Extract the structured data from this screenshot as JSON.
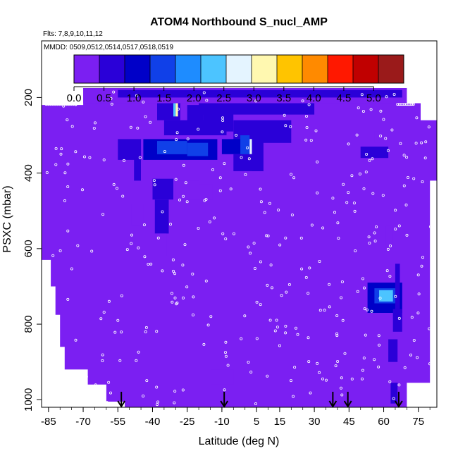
{
  "chart_data": {
    "type": "heatmap",
    "title": "ATOM4 Northbound S_nucl_AMP",
    "flights_label": "Flts: 7,8,9,10,11,12",
    "dates_label": "MMDD: 0509,0512,0514,0517,0518,0519",
    "xlabel": "Latitude (deg N)",
    "ylabel": "PSXC (mbar)",
    "xlim": [
      -88,
      83
    ],
    "ylim": [
      1020,
      50
    ],
    "x_ticks": [
      -85,
      -70,
      -55,
      -40,
      -25,
      -10,
      5,
      15,
      30,
      45,
      60,
      75
    ],
    "y_ticks": [
      200,
      400,
      600,
      800,
      1000
    ],
    "colorbar": {
      "range": [
        0.0,
        5.5
      ],
      "ticks": [
        0.0,
        0.5,
        1.0,
        1.5,
        2.0,
        2.5,
        3.0,
        3.5,
        4.0,
        4.5,
        5.0
      ],
      "colors": [
        "#7b1ff2",
        "#2a00d8",
        "#0000c8",
        "#1040e8",
        "#1e8cff",
        "#4cc4ff",
        "#e4f4ff",
        "#fff8b0",
        "#ffc400",
        "#ff8a00",
        "#ff1800",
        "#c00000",
        "#9a1a1a"
      ]
    },
    "background_value": 0.1,
    "boundary": [
      [
        -88,
        220
      ],
      [
        -88,
        630
      ],
      [
        -84,
        630
      ],
      [
        -84,
        700
      ],
      [
        -82,
        700
      ],
      [
        -82,
        775
      ],
      [
        -80,
        775
      ],
      [
        -80,
        860
      ],
      [
        -78,
        860
      ],
      [
        -78,
        920
      ],
      [
        -68,
        920
      ],
      [
        -68,
        960
      ],
      [
        -60,
        960
      ],
      [
        -60,
        1005
      ],
      [
        -52,
        1005
      ],
      [
        -52,
        1020
      ],
      [
        70,
        1020
      ],
      [
        70,
        955
      ],
      [
        80,
        955
      ],
      [
        80,
        420
      ],
      [
        83,
        420
      ],
      [
        83,
        260
      ],
      [
        76,
        260
      ],
      [
        76,
        215
      ],
      [
        70,
        215
      ],
      [
        70,
        175
      ],
      [
        -70,
        175
      ],
      [
        -70,
        220
      ]
    ],
    "features": [
      {
        "lat": [
          -70,
          68
        ],
        "p": [
          175,
          215
        ],
        "value": 0.3
      },
      {
        "lat": [
          -55,
          68
        ],
        "p": [
          180,
          200
        ],
        "value": 0.45
      },
      {
        "lat": [
          -20,
          30
        ],
        "p": [
          215,
          245
        ],
        "value": 0.5
      },
      {
        "lat": [
          -38,
          -28
        ],
        "p": [
          215,
          260
        ],
        "value": 0.6
      },
      {
        "lat": [
          -31,
          -30
        ],
        "p": [
          215,
          250
        ],
        "value": 2.3
      },
      {
        "lat": [
          -30,
          -29
        ],
        "p": [
          215,
          250
        ],
        "value": 3.0
      },
      {
        "lat": [
          -25,
          -18
        ],
        "p": [
          220,
          300
        ],
        "value": 0.5
      },
      {
        "lat": [
          -18,
          -5
        ],
        "p": [
          245,
          290
        ],
        "value": 0.7
      },
      {
        "lat": [
          -5,
          20
        ],
        "p": [
          260,
          320
        ],
        "value": 0.6
      },
      {
        "lat": [
          -35,
          -8
        ],
        "p": [
          260,
          300
        ],
        "value": 0.7
      },
      {
        "lat": [
          -55,
          -45
        ],
        "p": [
          310,
          365
        ],
        "value": 0.7
      },
      {
        "lat": [
          -44,
          -12
        ],
        "p": [
          310,
          365
        ],
        "value": 0.9
      },
      {
        "lat": [
          -38,
          -25
        ],
        "p": [
          315,
          350
        ],
        "value": 1.5
      },
      {
        "lat": [
          -25,
          -16
        ],
        "p": [
          320,
          355
        ],
        "value": 1.6
      },
      {
        "lat": [
          -10,
          -1
        ],
        "p": [
          310,
          350
        ],
        "value": 1.0
      },
      {
        "lat": [
          -2,
          2
        ],
        "p": [
          300,
          375
        ],
        "value": 1.3
      },
      {
        "lat": [
          2,
          3
        ],
        "p": [
          310,
          350
        ],
        "value": 2.8
      },
      {
        "lat": [
          3,
          8
        ],
        "p": [
          290,
          395
        ],
        "value": 0.7
      },
      {
        "lat": [
          -5,
          5
        ],
        "p": [
          350,
          395
        ],
        "value": 0.5
      },
      {
        "lat": [
          -48,
          -45
        ],
        "p": [
          360,
          420
        ],
        "value": 0.6
      },
      {
        "lat": [
          50,
          62
        ],
        "p": [
          330,
          360
        ],
        "value": 0.45
      },
      {
        "lat": [
          56,
          60
        ],
        "p": [
          290,
          320
        ],
        "value": 0.4
      },
      {
        "lat": [
          -40,
          -31
        ],
        "p": [
          415,
          470
        ],
        "value": 0.6
      },
      {
        "lat": [
          -39,
          -33
        ],
        "p": [
          470,
          560
        ],
        "value": 0.6
      },
      {
        "lat": [
          -40,
          -34
        ],
        "p": [
          560,
          620
        ],
        "value": 0.4
      },
      {
        "lat": [
          -30,
          -20
        ],
        "p": [
          420,
          470
        ],
        "value": 0.35
      },
      {
        "lat": [
          -49,
          -44
        ],
        "p": [
          480,
          540
        ],
        "value": 0.4
      },
      {
        "lat": [
          -20,
          -14
        ],
        "p": [
          430,
          470
        ],
        "value": 0.3
      },
      {
        "lat": [
          61,
          64
        ],
        "p": [
          540,
          590
        ],
        "value": 0.4
      },
      {
        "lat": [
          53,
          68
        ],
        "p": [
          690,
          770
        ],
        "value": 0.9
      },
      {
        "lat": [
          56,
          66
        ],
        "p": [
          705,
          745
        ],
        "value": 1.6
      },
      {
        "lat": [
          58,
          64
        ],
        "p": [
          710,
          740
        ],
        "value": 2.5
      },
      {
        "lat": [
          65,
          67
        ],
        "p": [
          640,
          760
        ],
        "value": 0.5
      },
      {
        "lat": [
          64,
          68
        ],
        "p": [
          760,
          820
        ],
        "value": 0.6
      },
      {
        "lat": [
          62,
          66
        ],
        "p": [
          840,
          900
        ],
        "value": 0.5
      },
      {
        "lat": [
          63,
          66
        ],
        "p": [
          955,
          1010
        ],
        "value": 0.8
      },
      {
        "lat": [
          -15,
          -5
        ],
        "p": [
          920,
          960
        ],
        "value": 0.2
      }
    ],
    "arrows_lat": [
      -53.5,
      -9,
      38,
      44.5,
      66.5
    ],
    "sample_points": {
      "seed": 42,
      "count": 340,
      "note": "open circles marking sample locations (approximate)"
    }
  }
}
